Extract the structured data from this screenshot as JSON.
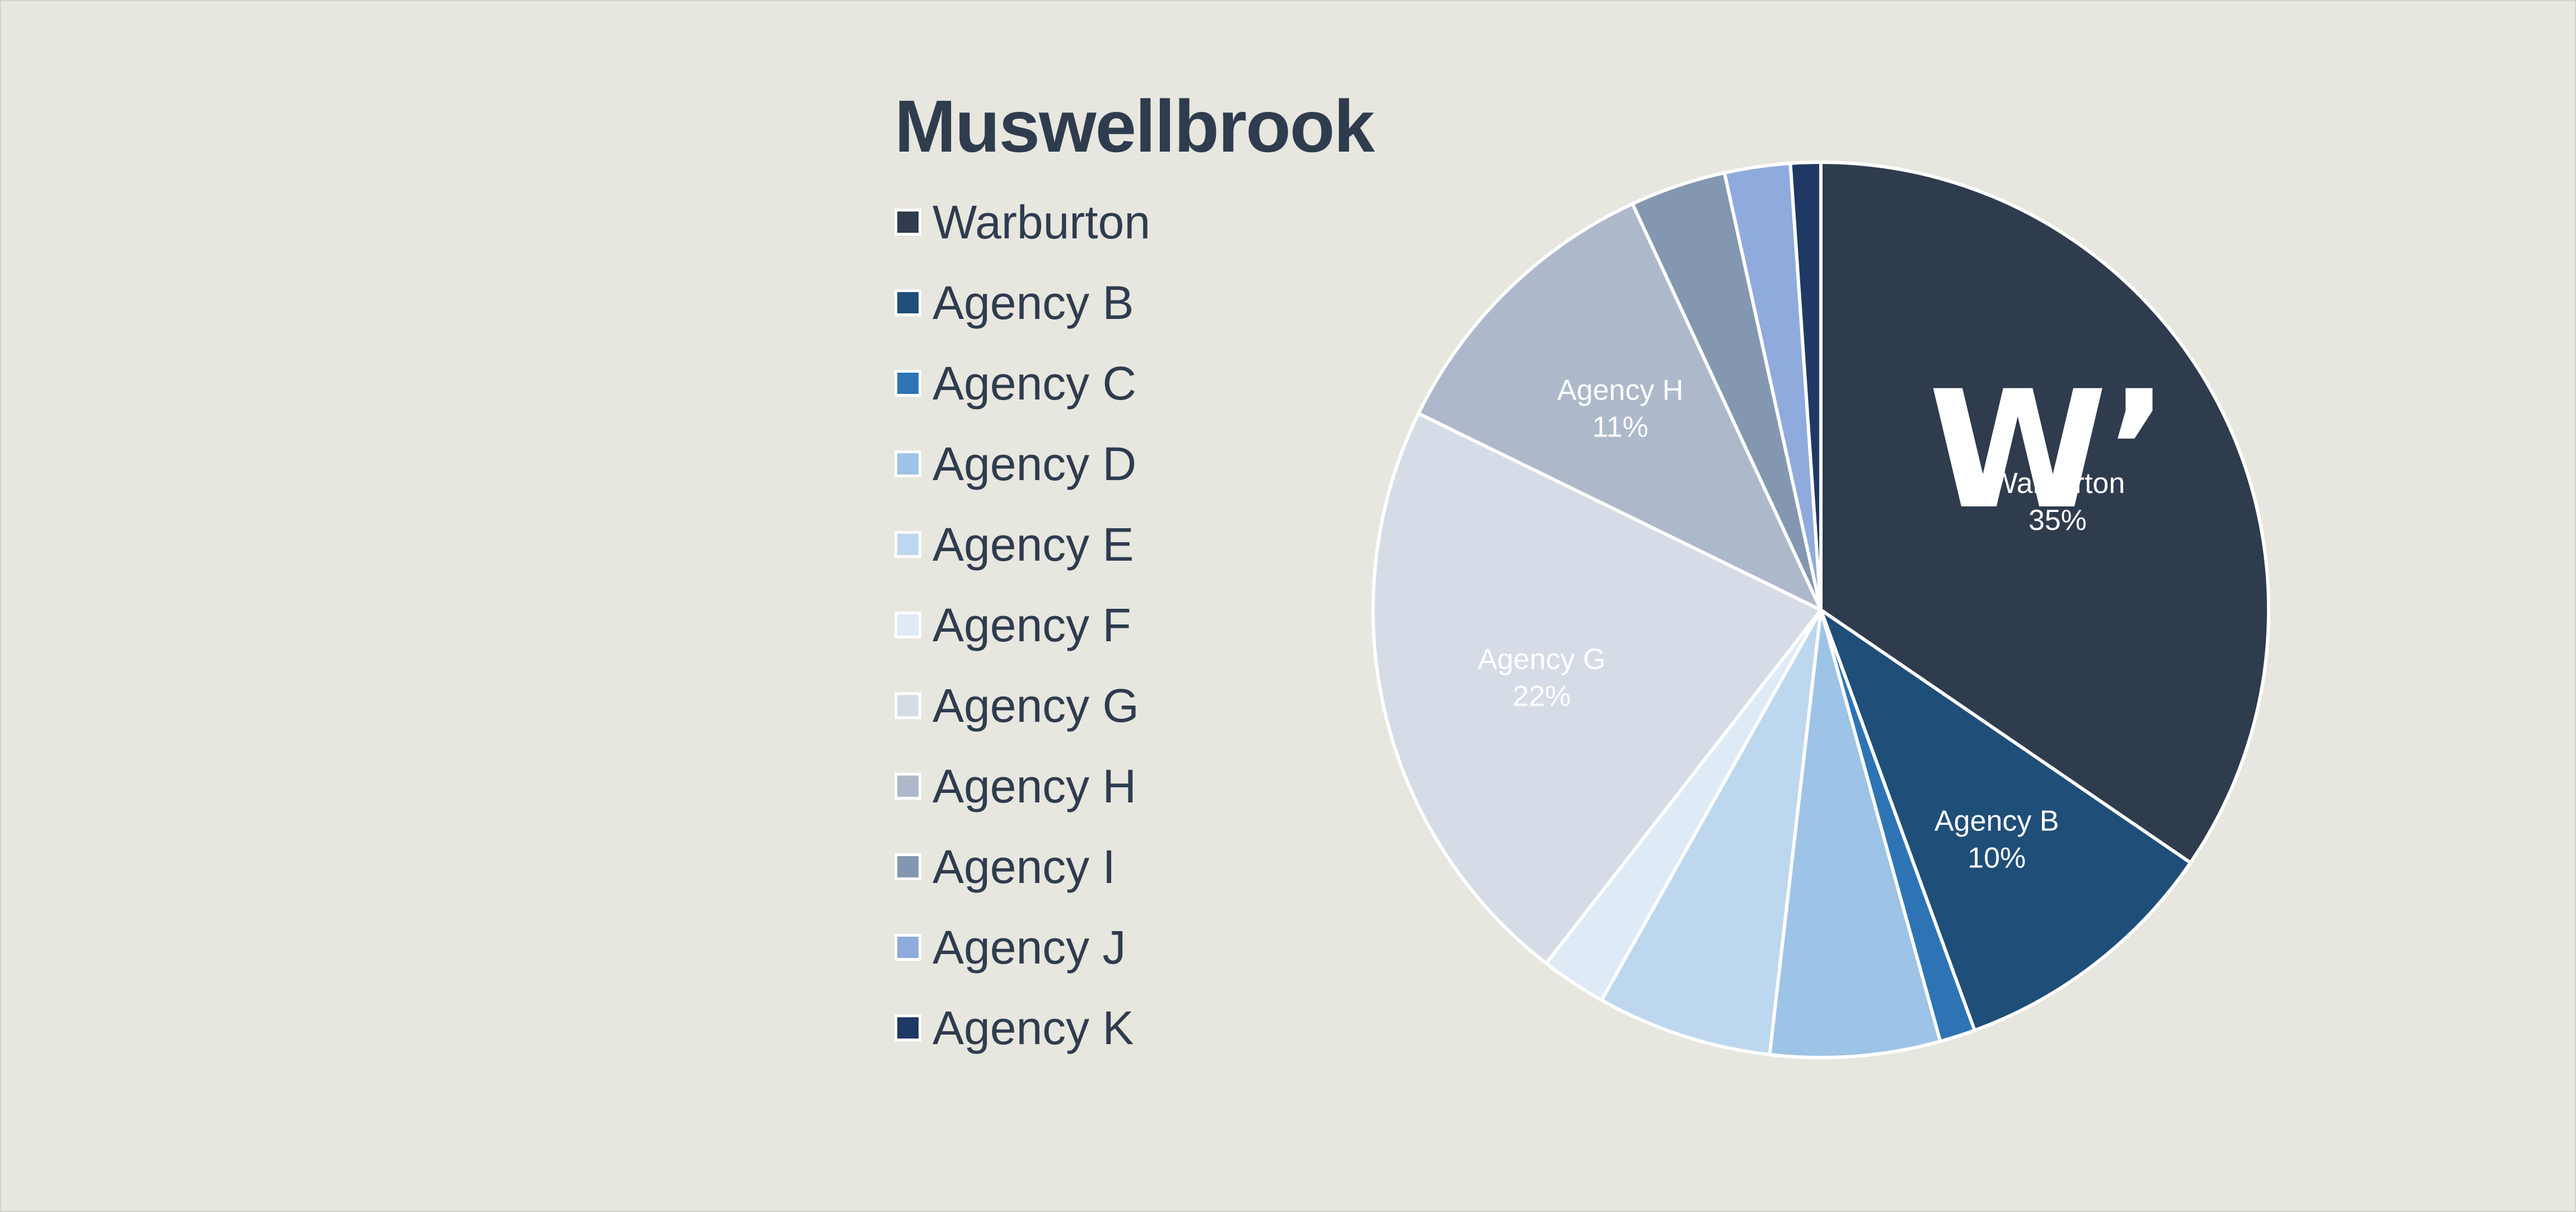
{
  "chart_data": {
    "type": "pie",
    "title": "Muswellbrook",
    "legend_position": "left",
    "categories": [
      "Warburton",
      "Agency B",
      "Agency C",
      "Agency D",
      "Agency E",
      "Agency F",
      "Agency G",
      "Agency H",
      "Agency I",
      "Agency J",
      "Agency K"
    ],
    "values": [
      35,
      10,
      1.3,
      6.2,
      6.4,
      2.4,
      22,
      11,
      3.5,
      2.4,
      1.1
    ],
    "colors": [
      "#2f3c4e",
      "#1f4e78",
      "#2e74b5",
      "#9dc3e6",
      "#bdd7ee",
      "#deebf7",
      "#d6dce5",
      "#adb9ca",
      "#8497b0",
      "#8faadc",
      "#203864"
    ],
    "slice_labels": [
      {
        "index": 0,
        "name": "Warburton",
        "pct": "35%"
      },
      {
        "index": 1,
        "name": "Agency B",
        "pct": "10%"
      },
      {
        "index": 6,
        "name": "Agency G",
        "pct": "22%"
      },
      {
        "index": 7,
        "name": "Agency H",
        "pct": "11%"
      }
    ],
    "logo": {
      "text": "W’",
      "color": "#ffffff",
      "on_slice": 0
    }
  }
}
